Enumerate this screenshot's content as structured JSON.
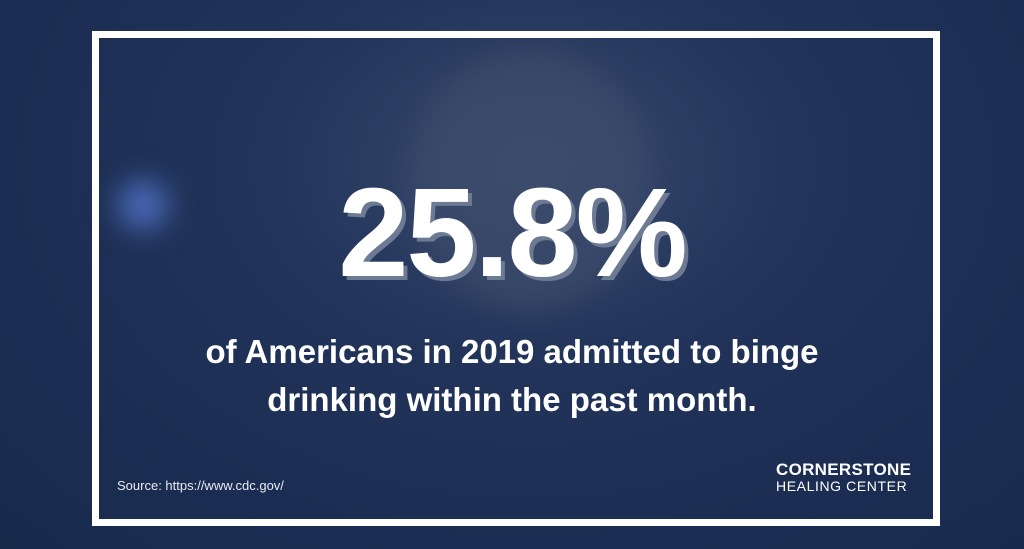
{
  "stat": "25.8%",
  "caption": [
    "of Americans in 2019 admitted to binge",
    "drinking within the past month."
  ],
  "source": "Source: https://www.cdc.gov/",
  "logo": {
    "name": "CORNERSTONE",
    "subtitle": "HEALING CENTER"
  }
}
